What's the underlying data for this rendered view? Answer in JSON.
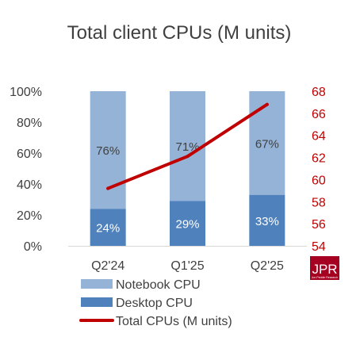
{
  "chart_data": {
    "type": "bar",
    "title": "Total client CPUs (M units)",
    "categories": [
      "Q2'24",
      "Q1'25",
      "Q2'25"
    ],
    "stacked": true,
    "series": [
      {
        "name": "Desktop CPU",
        "type": "bar",
        "axis": "left",
        "values": [
          24,
          29,
          33
        ],
        "labels": [
          "24%",
          "29%",
          "33%"
        ],
        "color": "#4f81bd"
      },
      {
        "name": "Notebook CPU",
        "type": "bar",
        "axis": "left",
        "values": [
          76,
          71,
          67
        ],
        "labels": [
          "76%",
          "71%",
          "67%"
        ],
        "color": "#95b3d7"
      },
      {
        "name": "Total CPUs (M units)",
        "type": "line",
        "axis": "right",
        "values": [
          59.2,
          62.1,
          66.8
        ],
        "color": "#c00000"
      }
    ],
    "y_left": {
      "min": 0,
      "max": 100,
      "ticks": [
        "0%",
        "20%",
        "40%",
        "60%",
        "80%",
        "100%"
      ],
      "color": "#404040"
    },
    "y_right": {
      "min": 54,
      "max": 68,
      "ticks": [
        "54",
        "56",
        "58",
        "60",
        "62",
        "64",
        "66",
        "68"
      ],
      "color": "#c00000"
    },
    "grid": false,
    "legend": {
      "position": "bottom",
      "order": [
        "Notebook CPU",
        "Desktop CPU",
        "Total CPUs (M units)"
      ]
    },
    "logo": {
      "text": "JPR",
      "subtext": "Jon Peddie Research"
    }
  }
}
